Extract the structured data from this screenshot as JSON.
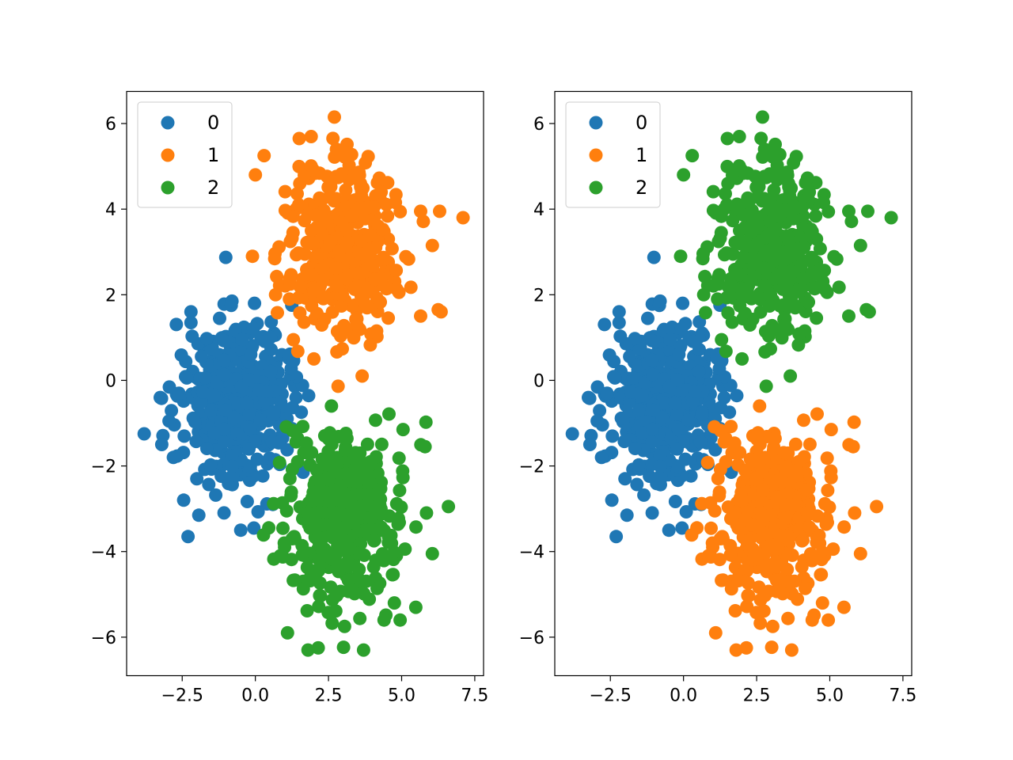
{
  "colors": {
    "class_0": "#1f77b4",
    "class_1": "#ff7f0e",
    "class_2": "#2ca02c",
    "axes": "#000000",
    "background": "#ffffff"
  },
  "chart_data": [
    {
      "type": "scatter",
      "xlim": [
        -4.4,
        7.8
      ],
      "ylim": [
        -6.9,
        6.75
      ],
      "xticks": [
        -2.5,
        0.0,
        2.5,
        5.0,
        7.5
      ],
      "xtick_labels": [
        "−2.5",
        "0.0",
        "2.5",
        "5.0",
        "7.5"
      ],
      "yticks": [
        -6,
        -4,
        -2,
        0,
        2,
        4,
        6
      ],
      "ytick_labels": [
        "−6",
        "−4",
        "−2",
        "0",
        "2",
        "4",
        "6"
      ],
      "legend": {
        "position": "upper left",
        "entries": [
          "0",
          "1",
          "2"
        ]
      },
      "series": [
        {
          "name": "0",
          "color": "#1f77b4",
          "center": [
            -0.6,
            -0.5
          ],
          "spread": [
            1.0,
            1.0
          ],
          "count": 400,
          "points": [
            [
              -3.8,
              -1.25
            ],
            [
              -3.25,
              -0.4
            ],
            [
              -2.95,
              -0.95
            ],
            [
              -2.45,
              -2.8
            ],
            [
              -2.3,
              -3.65
            ],
            [
              -2.2,
              1.35
            ],
            [
              -2.2,
              1.6
            ],
            [
              -0.8,
              1.85
            ],
            [
              -0.5,
              -3.5
            ],
            [
              -0.05,
              -3.45
            ],
            [
              0.6,
              -2.9
            ],
            [
              1.3,
              0.45
            ],
            [
              -3.2,
              -1.5
            ],
            [
              -2.8,
              -1.8
            ],
            [
              -2.0,
              -2.3
            ]
          ]
        }
      ]
    },
    {
      "type": "scatter",
      "xlim": [
        -4.4,
        7.8
      ],
      "ylim": [
        -6.9,
        6.75
      ],
      "xticks": [
        -2.5,
        0.0,
        2.5,
        5.0,
        7.5
      ],
      "xtick_labels": [
        "−2.5",
        "0.0",
        "2.5",
        "5.0",
        "7.5"
      ],
      "yticks": [
        -6,
        -4,
        -2,
        0,
        2,
        4,
        6
      ],
      "ytick_labels": [
        "−6",
        "−4",
        "−2",
        "0",
        "2",
        "4",
        "6"
      ],
      "legend": {
        "position": "upper left",
        "entries": [
          "0",
          "1",
          "2"
        ]
      },
      "series": [
        {
          "name": "0",
          "color": "#1f77b4",
          "center": [
            -0.6,
            -0.5
          ],
          "spread": [
            1.0,
            1.0
          ],
          "count": 400,
          "points": [
            [
              -3.8,
              -1.25
            ],
            [
              -3.25,
              -0.4
            ],
            [
              -2.95,
              -0.95
            ],
            [
              -2.45,
              -2.8
            ],
            [
              -2.3,
              -3.65
            ],
            [
              -2.2,
              1.35
            ],
            [
              -2.2,
              1.6
            ],
            [
              -0.8,
              1.85
            ],
            [
              -0.5,
              -3.5
            ],
            [
              -0.05,
              -3.45
            ],
            [
              0.6,
              -2.9
            ],
            [
              1.3,
              0.45
            ],
            [
              -3.2,
              -1.5
            ],
            [
              -2.8,
              -1.8
            ],
            [
              -2.0,
              -2.3
            ]
          ]
        }
      ]
    }
  ],
  "clusters": {
    "orange_blob": {
      "center": [
        3.0,
        3.1
      ],
      "spread": [
        1.0,
        1.0
      ],
      "count": 400,
      "points": [
        [
          2.7,
          6.15
        ],
        [
          1.5,
          5.65
        ],
        [
          0.3,
          5.25
        ],
        [
          0.0,
          4.8
        ],
        [
          5.65,
          3.95
        ],
        [
          6.3,
          3.95
        ],
        [
          7.1,
          3.8
        ],
        [
          6.05,
          3.15
        ],
        [
          6.25,
          1.65
        ],
        [
          5.65,
          1.5
        ],
        [
          6.35,
          1.6
        ],
        [
          3.65,
          0.1
        ],
        [
          2.0,
          0.5
        ],
        [
          1.3,
          0.95
        ],
        [
          -0.1,
          2.9
        ],
        [
          4.3,
          4.4
        ]
      ]
    },
    "green_blob": {
      "center": [
        3.0,
        -3.2
      ],
      "spread": [
        1.0,
        1.0
      ],
      "count": 400,
      "points": [
        [
          1.1,
          -5.9
        ],
        [
          1.8,
          -6.3
        ],
        [
          2.15,
          -6.25
        ],
        [
          3.7,
          -6.3
        ],
        [
          3.05,
          -5.75
        ],
        [
          4.95,
          -5.6
        ],
        [
          4.4,
          -5.6
        ],
        [
          4.75,
          -5.2
        ],
        [
          6.6,
          -2.95
        ],
        [
          6.05,
          -4.05
        ],
        [
          5.85,
          -3.1
        ],
        [
          5.05,
          -1.15
        ],
        [
          5.8,
          -1.55
        ],
        [
          1.0,
          -3.9
        ],
        [
          0.85,
          -4.1
        ],
        [
          2.6,
          -0.6
        ]
      ]
    }
  },
  "panels": [
    {
      "id": "left",
      "orange_blob_series": "1",
      "green_blob_series": "2"
    },
    {
      "id": "right",
      "orange_blob_series": "2",
      "green_blob_series": "1"
    }
  ]
}
